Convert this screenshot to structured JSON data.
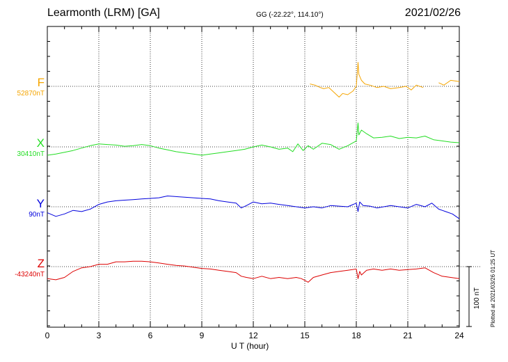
{
  "header": {
    "title": "Learmonth (LRM)  [GA]",
    "coords": "GG (-22.22°, 114.10°)",
    "date": "2021/02/26"
  },
  "footer": {
    "xlabel": "U T (hour)",
    "plotted": "Plotted at 2021/03/26 01:25 UT",
    "scale_label": "100 nT"
  },
  "chart_data": {
    "type": "line",
    "title": "Learmonth (LRM)  [GA]",
    "xlabel": "U T (hour)",
    "xlim": [
      0,
      24
    ],
    "xticks": [
      0,
      3,
      6,
      9,
      12,
      15,
      18,
      21,
      24
    ],
    "grid": true,
    "scale_bar_nT": 100,
    "series": [
      {
        "name": "F",
        "baseline_label": "52870nT",
        "baseline_nT": 52870,
        "color": "#f5a500",
        "x": [
          15.3,
          15.6,
          15.9,
          16.1,
          16.4,
          16.7,
          17.0,
          17.2,
          17.5,
          17.8,
          18.0,
          18.1,
          18.15,
          18.3,
          18.5,
          18.8,
          19.2,
          19.6,
          20.0,
          20.5,
          20.9,
          21.2,
          21.5,
          21.9,
          null,
          22.8,
          23.1,
          23.5,
          24.0
        ],
        "offsets_nT": [
          4,
          2,
          -2,
          -4,
          -2,
          -10,
          -18,
          -12,
          -14,
          -8,
          0,
          40,
          20,
          10,
          4,
          2,
          -2,
          0,
          -4,
          -2,
          0,
          -6,
          2,
          -2,
          null,
          6,
          2,
          10,
          8
        ]
      },
      {
        "name": "X",
        "baseline_label": "30410nT",
        "baseline_nT": 30410,
        "color": "#22dd22",
        "x": [
          0.0,
          0.5,
          1.0,
          1.5,
          2.0,
          2.5,
          3.0,
          3.5,
          4.0,
          4.5,
          5.0,
          5.5,
          6.0,
          6.5,
          7.0,
          7.5,
          8.0,
          8.5,
          9.0,
          9.5,
          10.0,
          10.5,
          11.0,
          11.5,
          12.0,
          12.5,
          13.0,
          13.5,
          14.0,
          14.3,
          14.6,
          14.9,
          15.2,
          15.5,
          16.0,
          16.5,
          17.0,
          17.5,
          18.0,
          18.1,
          18.15,
          18.3,
          18.6,
          19.0,
          19.5,
          20.0,
          20.5,
          21.0,
          21.5,
          22.0,
          22.5,
          23.0,
          23.5,
          24.0
        ],
        "offsets_nT": [
          -14,
          -12,
          -9,
          -6,
          -2,
          2,
          5,
          4,
          3,
          1,
          2,
          4,
          2,
          -2,
          -5,
          -8,
          -10,
          -12,
          -14,
          -12,
          -10,
          -8,
          -6,
          -4,
          0,
          3,
          0,
          -4,
          -2,
          -8,
          5,
          -6,
          2,
          -4,
          6,
          4,
          -4,
          2,
          10,
          40,
          20,
          28,
          22,
          15,
          16,
          18,
          14,
          16,
          15,
          18,
          12,
          10,
          8,
          7
        ]
      },
      {
        "name": "Y",
        "baseline_label": "90nT",
        "baseline_nT": 90,
        "color": "#0000dd",
        "x": [
          0.0,
          0.5,
          1.0,
          1.5,
          2.0,
          2.5,
          3.0,
          3.5,
          4.0,
          4.5,
          5.0,
          5.5,
          6.0,
          6.5,
          7.0,
          7.5,
          8.0,
          8.5,
          9.0,
          9.5,
          10.0,
          10.5,
          11.0,
          11.3,
          11.6,
          12.0,
          12.5,
          13.0,
          13.5,
          14.0,
          14.5,
          15.0,
          15.5,
          16.0,
          16.5,
          17.0,
          17.5,
          18.0,
          18.1,
          18.2,
          18.4,
          18.8,
          19.2,
          19.6,
          20.0,
          20.5,
          21.0,
          21.5,
          22.0,
          22.4,
          22.8,
          23.2,
          23.6,
          24.0
        ],
        "offsets_nT": [
          -10,
          -16,
          -12,
          -6,
          -8,
          -4,
          4,
          8,
          10,
          11,
          12,
          13,
          14,
          15,
          18,
          17,
          16,
          15,
          14,
          13,
          10,
          8,
          6,
          -2,
          2,
          8,
          5,
          6,
          4,
          2,
          0,
          -2,
          0,
          -2,
          2,
          1,
          0,
          6,
          -8,
          8,
          2,
          1,
          -2,
          0,
          2,
          0,
          -2,
          4,
          0,
          6,
          -4,
          -8,
          -12,
          -20
        ]
      },
      {
        "name": "Z",
        "baseline_label": "-43240nT",
        "baseline_nT": -43240,
        "color": "#dd0000",
        "x": [
          0.0,
          0.5,
          1.0,
          1.5,
          2.0,
          2.5,
          3.0,
          3.5,
          4.0,
          4.5,
          5.0,
          5.5,
          6.0,
          6.5,
          7.0,
          7.5,
          8.0,
          8.5,
          9.0,
          9.5,
          10.0,
          10.5,
          11.0,
          11.3,
          11.6,
          12.0,
          12.5,
          13.0,
          13.5,
          14.0,
          14.5,
          14.8,
          15.2,
          15.5,
          16.0,
          16.5,
          17.0,
          17.5,
          18.0,
          18.1,
          18.2,
          18.3,
          18.6,
          19.0,
          19.5,
          20.0,
          20.5,
          21.0,
          21.5,
          22.0,
          22.5,
          23.0,
          23.5,
          24.0
        ],
        "offsets_nT": [
          -20,
          -22,
          -18,
          -8,
          -2,
          0,
          4,
          4,
          8,
          8,
          9,
          9,
          8,
          6,
          4,
          2,
          1,
          -1,
          -3,
          -4,
          -6,
          -8,
          -10,
          -16,
          -18,
          -20,
          -16,
          -20,
          -18,
          -20,
          -18,
          -20,
          -26,
          -18,
          -14,
          -10,
          -8,
          -6,
          -4,
          -20,
          -8,
          -14,
          -6,
          -4,
          -6,
          -4,
          -6,
          -5,
          -4,
          -2,
          -10,
          -16,
          -18,
          -20
        ]
      }
    ]
  }
}
